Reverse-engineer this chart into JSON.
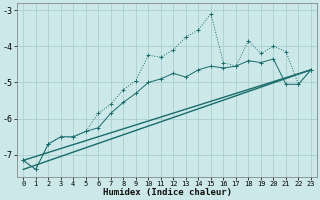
{
  "xlabel": "Humidex (Indice chaleur)",
  "xlim": [
    -0.5,
    23.5
  ],
  "ylim": [
    -7.6,
    -2.8
  ],
  "xticks": [
    0,
    1,
    2,
    3,
    4,
    5,
    6,
    7,
    8,
    9,
    10,
    11,
    12,
    13,
    14,
    15,
    16,
    17,
    18,
    19,
    20,
    21,
    22,
    23
  ],
  "yticks": [
    -7,
    -6,
    -5,
    -4,
    -3
  ],
  "bg_color": "#cce8e8",
  "line_color": "#1a6b6b",
  "grid_color": "#aacfcf",
  "series1_x": [
    0,
    1,
    2,
    3,
    4,
    5,
    6,
    7,
    8,
    9,
    10,
    11,
    12,
    13,
    14,
    15,
    16,
    17,
    18,
    19,
    20,
    21,
    22,
    23
  ],
  "series1_y": [
    -7.15,
    -7.4,
    -6.7,
    -6.5,
    -6.5,
    -6.35,
    -5.85,
    -5.6,
    -5.2,
    -4.95,
    -4.25,
    -4.3,
    -4.1,
    -3.75,
    -3.55,
    -3.1,
    -4.45,
    -4.55,
    -3.85,
    -4.2,
    -4.0,
    -4.15,
    -5.05,
    -4.65
  ],
  "series2_x": [
    0,
    1,
    2,
    3,
    4,
    5,
    6,
    7,
    8,
    9,
    10,
    11,
    12,
    13,
    14,
    15,
    16,
    17,
    18,
    19,
    20,
    21,
    22,
    23
  ],
  "series2_y": [
    -7.15,
    -7.4,
    -6.7,
    -6.5,
    -6.5,
    -6.35,
    -6.25,
    -5.85,
    -5.55,
    -5.3,
    -5.0,
    -4.9,
    -4.75,
    -4.85,
    -4.65,
    -4.55,
    -4.6,
    -4.55,
    -4.4,
    -4.45,
    -4.35,
    -5.05,
    -5.05,
    -4.65
  ],
  "series3_x": [
    0,
    23
  ],
  "series3_y": [
    -7.15,
    -4.65
  ],
  "series4_x": [
    0,
    23
  ],
  "series4_y": [
    -7.4,
    -4.65
  ]
}
